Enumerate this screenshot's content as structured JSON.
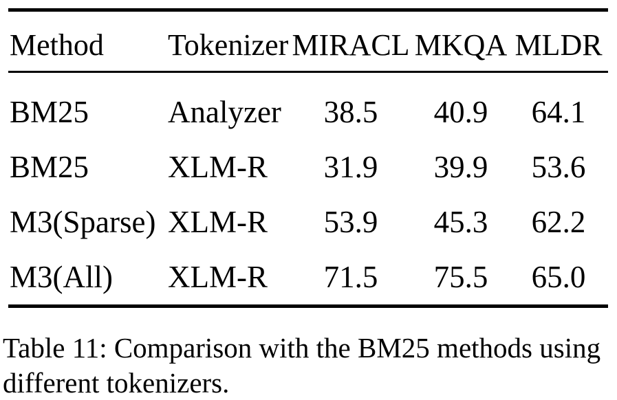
{
  "table": {
    "columns": [
      "Method",
      "Tokenizer",
      "MIRACL",
      "MKQA",
      "MLDR"
    ],
    "rows": [
      [
        "BM25",
        "Analyzer",
        "38.5",
        "40.9",
        "64.1"
      ],
      [
        "BM25",
        "XLM-R",
        "31.9",
        "39.9",
        "53.6"
      ],
      [
        "M3(Sparse)",
        "XLM-R",
        "53.9",
        "45.3",
        "62.2"
      ],
      [
        "M3(All)",
        "XLM-R",
        "71.5",
        "75.5",
        "65.0"
      ]
    ]
  },
  "caption": {
    "lines": [
      "Table 11: Comparison with the BM25 methods using",
      "different tokenizers."
    ]
  },
  "colors": {
    "text": "#000000",
    "background": "#ffffff",
    "rule": "#000000"
  }
}
